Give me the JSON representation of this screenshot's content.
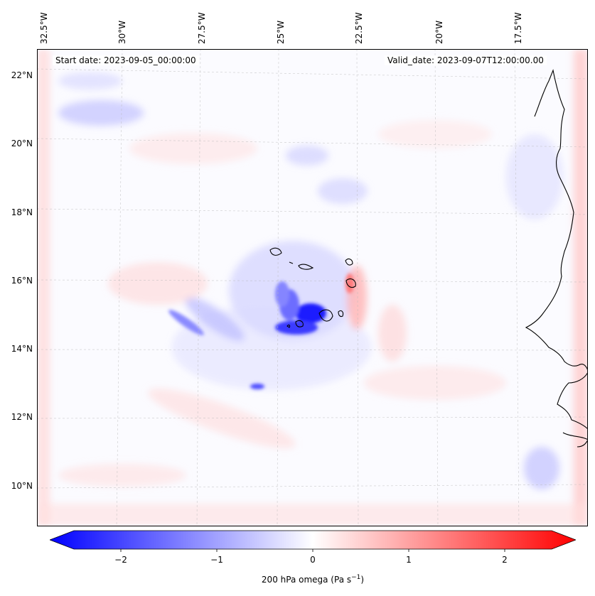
{
  "header": {
    "start_date": "Start date: 2023-09-05_00:00:00",
    "valid_date": "Valid_date: 2023-09-07T12:00:00.00"
  },
  "map": {
    "lon_labels": [
      "32.5°W",
      "30°W",
      "27.5°W",
      "25°W",
      "22.5°W",
      "20°W",
      "17.5°W"
    ],
    "lat_labels": [
      "22°N",
      "20°N",
      "18°N",
      "16°N",
      "14°N",
      "12°N",
      "10°N"
    ],
    "field": "200 hPa omega",
    "colormap": [
      "#0000ff",
      "#ffffff",
      "#ff0000"
    ],
    "coastline_color": "#000000"
  },
  "colorbar": {
    "range": [
      -2.5,
      2.5
    ],
    "extend": "both",
    "ticks": [
      "−2",
      "−1",
      "0",
      "1",
      "2"
    ],
    "tick_values": [
      -2,
      -1,
      0,
      1,
      2
    ],
    "label": "200 hPa omega (Pa s",
    "label_sup": "−1",
    "label_end": ")"
  }
}
